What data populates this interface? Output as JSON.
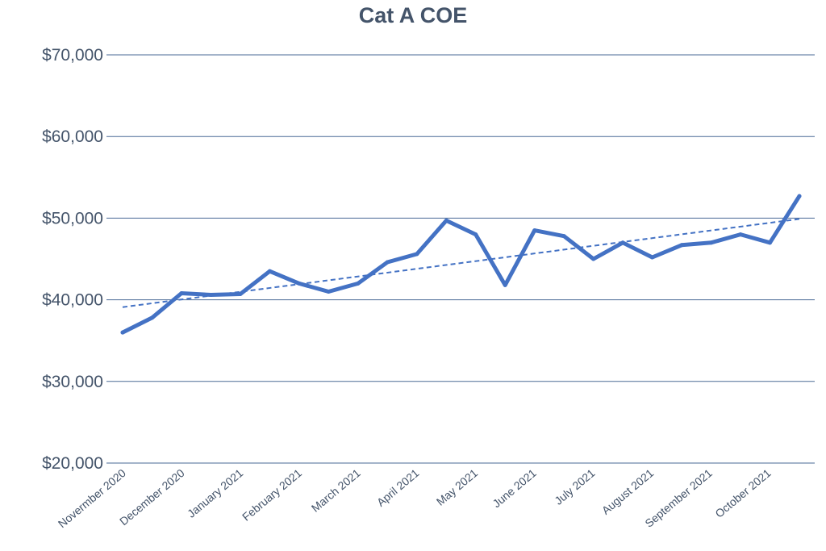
{
  "chart_data": {
    "type": "line",
    "title": "Cat A COE",
    "xlabel": "",
    "ylabel": "",
    "ylim": [
      20000,
      70000
    ],
    "yticks": [
      20000,
      30000,
      40000,
      50000,
      60000,
      70000
    ],
    "ytick_labels": [
      "$20,000",
      "$30,000",
      "$40,000",
      "$50,000",
      "$60,000",
      "$70,000"
    ],
    "grid": true,
    "legend": "none",
    "x_tick_labels": [
      "Novermber 2020",
      "December 2020",
      "January 2021",
      "February 2021",
      "March 2021",
      "April 2021",
      "May 2021",
      "June 2021",
      "July 2021",
      "August 2021",
      "September 2021",
      "October 2021"
    ],
    "series": [
      {
        "values": [
          36000,
          37800,
          40800,
          40600,
          40700,
          43500,
          42000,
          41000,
          42000,
          44600,
          45600,
          49700,
          48000,
          41800,
          48500,
          47800,
          45000,
          47000,
          45200,
          46700,
          47000,
          48000,
          47000,
          52700
        ],
        "color": "#4472c4",
        "style": "solid"
      },
      {
        "values": [
          39100,
          49900
        ],
        "color": "#4472c4",
        "style": "dashed",
        "trendline": true
      }
    ]
  }
}
